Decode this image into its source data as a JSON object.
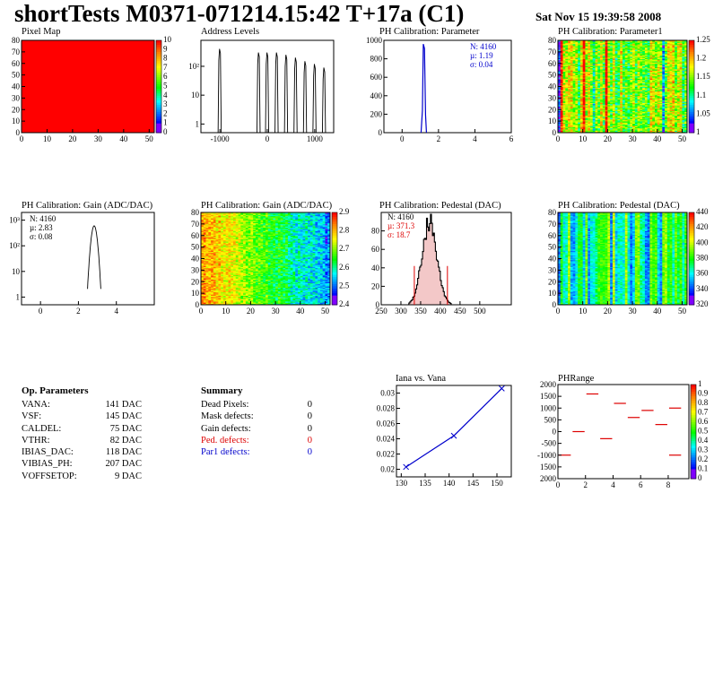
{
  "header": {
    "title": "shortTests M0371-071214.15:42 T+17a (C1)",
    "date": "Sat Nov 15 19:39:58 2008"
  },
  "colors": {
    "hist": "#000000",
    "blue": "#0000cc",
    "red": "#dd0000",
    "pixmap": "#ff0000"
  },
  "panels": {
    "pixelmap": {
      "title": "Pixel Map",
      "xlim": [
        0,
        52
      ],
      "ylim": [
        0,
        80
      ],
      "xticks": [
        "0",
        "10",
        "20",
        "30",
        "40",
        "50"
      ],
      "yticks": [
        "0",
        "10",
        "20",
        "30",
        "40",
        "50",
        "60",
        "70",
        "80"
      ],
      "cticks": [
        "0",
        "1",
        "2",
        "3",
        "4",
        "5",
        "6",
        "7",
        "8",
        "9",
        "10"
      ]
    },
    "address": {
      "title": "Address Levels",
      "xticks": [
        "-1000",
        "0",
        "1000"
      ],
      "ytick_labels": [
        "1",
        "10",
        "10²"
      ],
      "chart_data": {
        "type": "bar",
        "xlim": [
          -1400,
          1400
        ],
        "log_y": true,
        "peaks": [
          {
            "x": -1000,
            "height": 400
          },
          {
            "x": -180,
            "height": 300
          },
          {
            "x": 0,
            "height": 300
          },
          {
            "x": 200,
            "height": 300
          },
          {
            "x": 400,
            "height": 250
          },
          {
            "x": 600,
            "height": 200
          },
          {
            "x": 800,
            "height": 150
          },
          {
            "x": 1000,
            "height": 120
          },
          {
            "x": 1200,
            "height": 90
          }
        ]
      }
    },
    "phparam": {
      "title": "PH Calibration: Parameter",
      "stats": [
        "N: 4160",
        "µ: 1.19",
        "σ: 0.04"
      ],
      "xticks": [
        "0",
        "2",
        "4",
        "6"
      ],
      "yticks": [
        "0",
        "200",
        "400",
        "600",
        "800",
        "1000"
      ],
      "chart_data": {
        "type": "bar",
        "xlim": [
          -1,
          6
        ],
        "ylim": [
          0,
          1000
        ],
        "mean": 1.19,
        "sigma": 0.04,
        "peak": 960
      }
    },
    "phparam1": {
      "title": "PH Calibration: Parameter1",
      "xticks": [
        "0",
        "10",
        "20",
        "30",
        "40",
        "50"
      ],
      "yticks": [
        "0",
        "10",
        "20",
        "30",
        "40",
        "50",
        "60",
        "70",
        "80"
      ],
      "cticks": [
        "1",
        "1.05",
        "1.1",
        "1.15",
        "1.2",
        "1.25"
      ]
    },
    "gain": {
      "title": "PH Calibration: Gain (ADC/DAC)",
      "stats": [
        "N: 4160",
        "µ: 2.83",
        "σ: 0.08"
      ],
      "xticks": [
        "0",
        "2",
        "4"
      ],
      "ytick_labels": [
        "1",
        "10",
        "10²",
        "10³"
      ],
      "chart_data": {
        "type": "bar",
        "xlim": [
          -1,
          6
        ],
        "log_y": true,
        "mean": 2.83,
        "sigma": 0.08,
        "peak": 600
      }
    },
    "gainmap": {
      "title": "PH Calibration: Gain (ADC/DAC)",
      "xticks": [
        "0",
        "10",
        "20",
        "30",
        "40",
        "50"
      ],
      "yticks": [
        "0",
        "10",
        "20",
        "30",
        "40",
        "50",
        "60",
        "70",
        "80"
      ],
      "cticks": [
        "2.4",
        "2.5",
        "2.6",
        "2.7",
        "2.8",
        "2.9"
      ]
    },
    "pedestal": {
      "title": "PH Calibration: Pedestal (DAC)",
      "stats": [
        "N: 4160",
        "µ: 371.3",
        "σ: 18.7"
      ],
      "xticks": [
        "250",
        "300",
        "350",
        "400",
        "450",
        "500"
      ],
      "yticks": [
        "0",
        "20",
        "40",
        "60",
        "80"
      ],
      "chart_data": {
        "type": "bar",
        "xlim": [
          250,
          580
        ],
        "ylim": [
          0,
          100
        ],
        "mean": 371.3,
        "sigma": 18.7,
        "peak": 92,
        "cut_lines": [
          334,
          418
        ]
      }
    },
    "pedmap": {
      "title": "PH Calibration: Pedestal (DAC)",
      "xticks": [
        "0",
        "10",
        "20",
        "30",
        "40",
        "50"
      ],
      "yticks": [
        "0",
        "10",
        "20",
        "30",
        "40",
        "50",
        "60",
        "70",
        "80"
      ],
      "cticks": [
        "320",
        "340",
        "360",
        "380",
        "400",
        "420",
        "440"
      ]
    },
    "iana": {
      "title": "Iana vs. Vana",
      "xticks": [
        "130",
        "135",
        "140",
        "145",
        "150"
      ],
      "yticks": [
        "0.02",
        "0.022",
        "0.024",
        "0.026",
        "0.028",
        "0.03"
      ],
      "chart_data": {
        "type": "line",
        "xlim": [
          129,
          153
        ],
        "ylim": [
          0.019,
          0.031
        ],
        "x": [
          131,
          141,
          151
        ],
        "y": [
          0.0203,
          0.0244,
          0.0306
        ]
      }
    },
    "phrange": {
      "title": "PHRange",
      "xticks": [
        "0",
        "2",
        "4",
        "6",
        "8"
      ],
      "yticks": [
        "2000",
        "1500",
        "1000",
        "500",
        "0",
        "-500",
        "-1000",
        "1500",
        "2000"
      ],
      "cticks": [
        "0",
        "0.1",
        "0.2",
        "0.3",
        "0.4",
        "0.5",
        "0.6",
        "0.7",
        "0.8",
        "0.9",
        "1"
      ],
      "chart_data": {
        "type": "scatter",
        "xlim": [
          0,
          9.5
        ],
        "ylim": [
          -2000,
          2000
        ],
        "segments": [
          {
            "x0": 0,
            "x1": 1,
            "y": -1000
          },
          {
            "x0": 1,
            "x1": 2,
            "y": 0
          },
          {
            "x0": 2,
            "x1": 3,
            "y": 1600
          },
          {
            "x0": 3,
            "x1": 4,
            "y": -300
          },
          {
            "x0": 4,
            "x1": 5,
            "y": 1200
          },
          {
            "x0": 5,
            "x1": 6,
            "y": 600
          },
          {
            "x0": 6,
            "x1": 7,
            "y": 900
          },
          {
            "x0": 7,
            "x1": 8,
            "y": 300
          },
          {
            "x0": 8,
            "x1": 9,
            "y": 1000
          },
          {
            "x0": 8,
            "x1": 9,
            "y": -1000
          }
        ]
      }
    }
  },
  "op_params": {
    "title": "Op. Parameters",
    "rows": [
      {
        "name": "VANA:",
        "value": "141 DAC"
      },
      {
        "name": "VSF:",
        "value": "145 DAC"
      },
      {
        "name": "CALDEL:",
        "value": "75 DAC"
      },
      {
        "name": "VTHR:",
        "value": "82 DAC"
      },
      {
        "name": "IBIAS_DAC:",
        "value": "118 DAC"
      },
      {
        "name": "VIBIAS_PH:",
        "value": "207 DAC"
      },
      {
        "name": "VOFFSETOP:",
        "value": "9 DAC"
      }
    ]
  },
  "summary": {
    "title": "Summary",
    "rows": [
      {
        "name": "Dead Pixels:",
        "value": "0",
        "color": "#000000"
      },
      {
        "name": "Mask defects:",
        "value": "0",
        "color": "#000000"
      },
      {
        "name": "Gain defects:",
        "value": "0",
        "color": "#000000"
      },
      {
        "name": "Ped. defects:",
        "value": "0",
        "color": "#dd0000"
      },
      {
        "name": "Par1 defects:",
        "value": "0",
        "color": "#0000cc"
      }
    ]
  }
}
